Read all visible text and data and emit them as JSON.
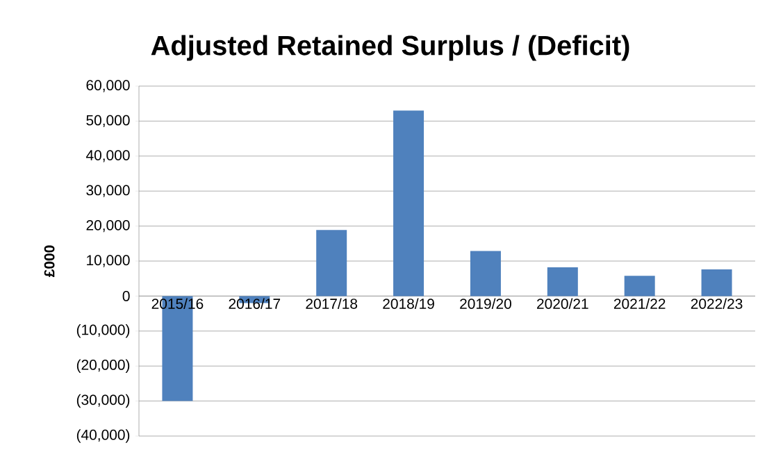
{
  "chart_data": {
    "type": "bar",
    "title": "Adjusted Retained Surplus / (Deficit)",
    "ylabel": "£000",
    "categories": [
      "2015/16",
      "2016/17",
      "2017/18",
      "2018/19",
      "2019/20",
      "2020/21",
      "2021/22",
      "2022/23"
    ],
    "values": [
      -30000,
      -2000,
      18900,
      53000,
      12900,
      8200,
      5800,
      7600
    ],
    "color": "#4f81bd",
    "ylim": [
      -40000,
      60000
    ],
    "yticks": [
      {
        "value": -40000,
        "label": "(40,000)"
      },
      {
        "value": -30000,
        "label": "(30,000)"
      },
      {
        "value": -20000,
        "label": "(20,000)"
      },
      {
        "value": -10000,
        "label": "(10,000)"
      },
      {
        "value": 0,
        "label": "0"
      },
      {
        "value": 10000,
        "label": "10,000"
      },
      {
        "value": 20000,
        "label": "20,000"
      },
      {
        "value": 30000,
        "label": "30,000"
      },
      {
        "value": 40000,
        "label": "40,000"
      },
      {
        "value": 50000,
        "label": "50,000"
      },
      {
        "value": 60000,
        "label": "60,000"
      }
    ],
    "grid": "y"
  }
}
